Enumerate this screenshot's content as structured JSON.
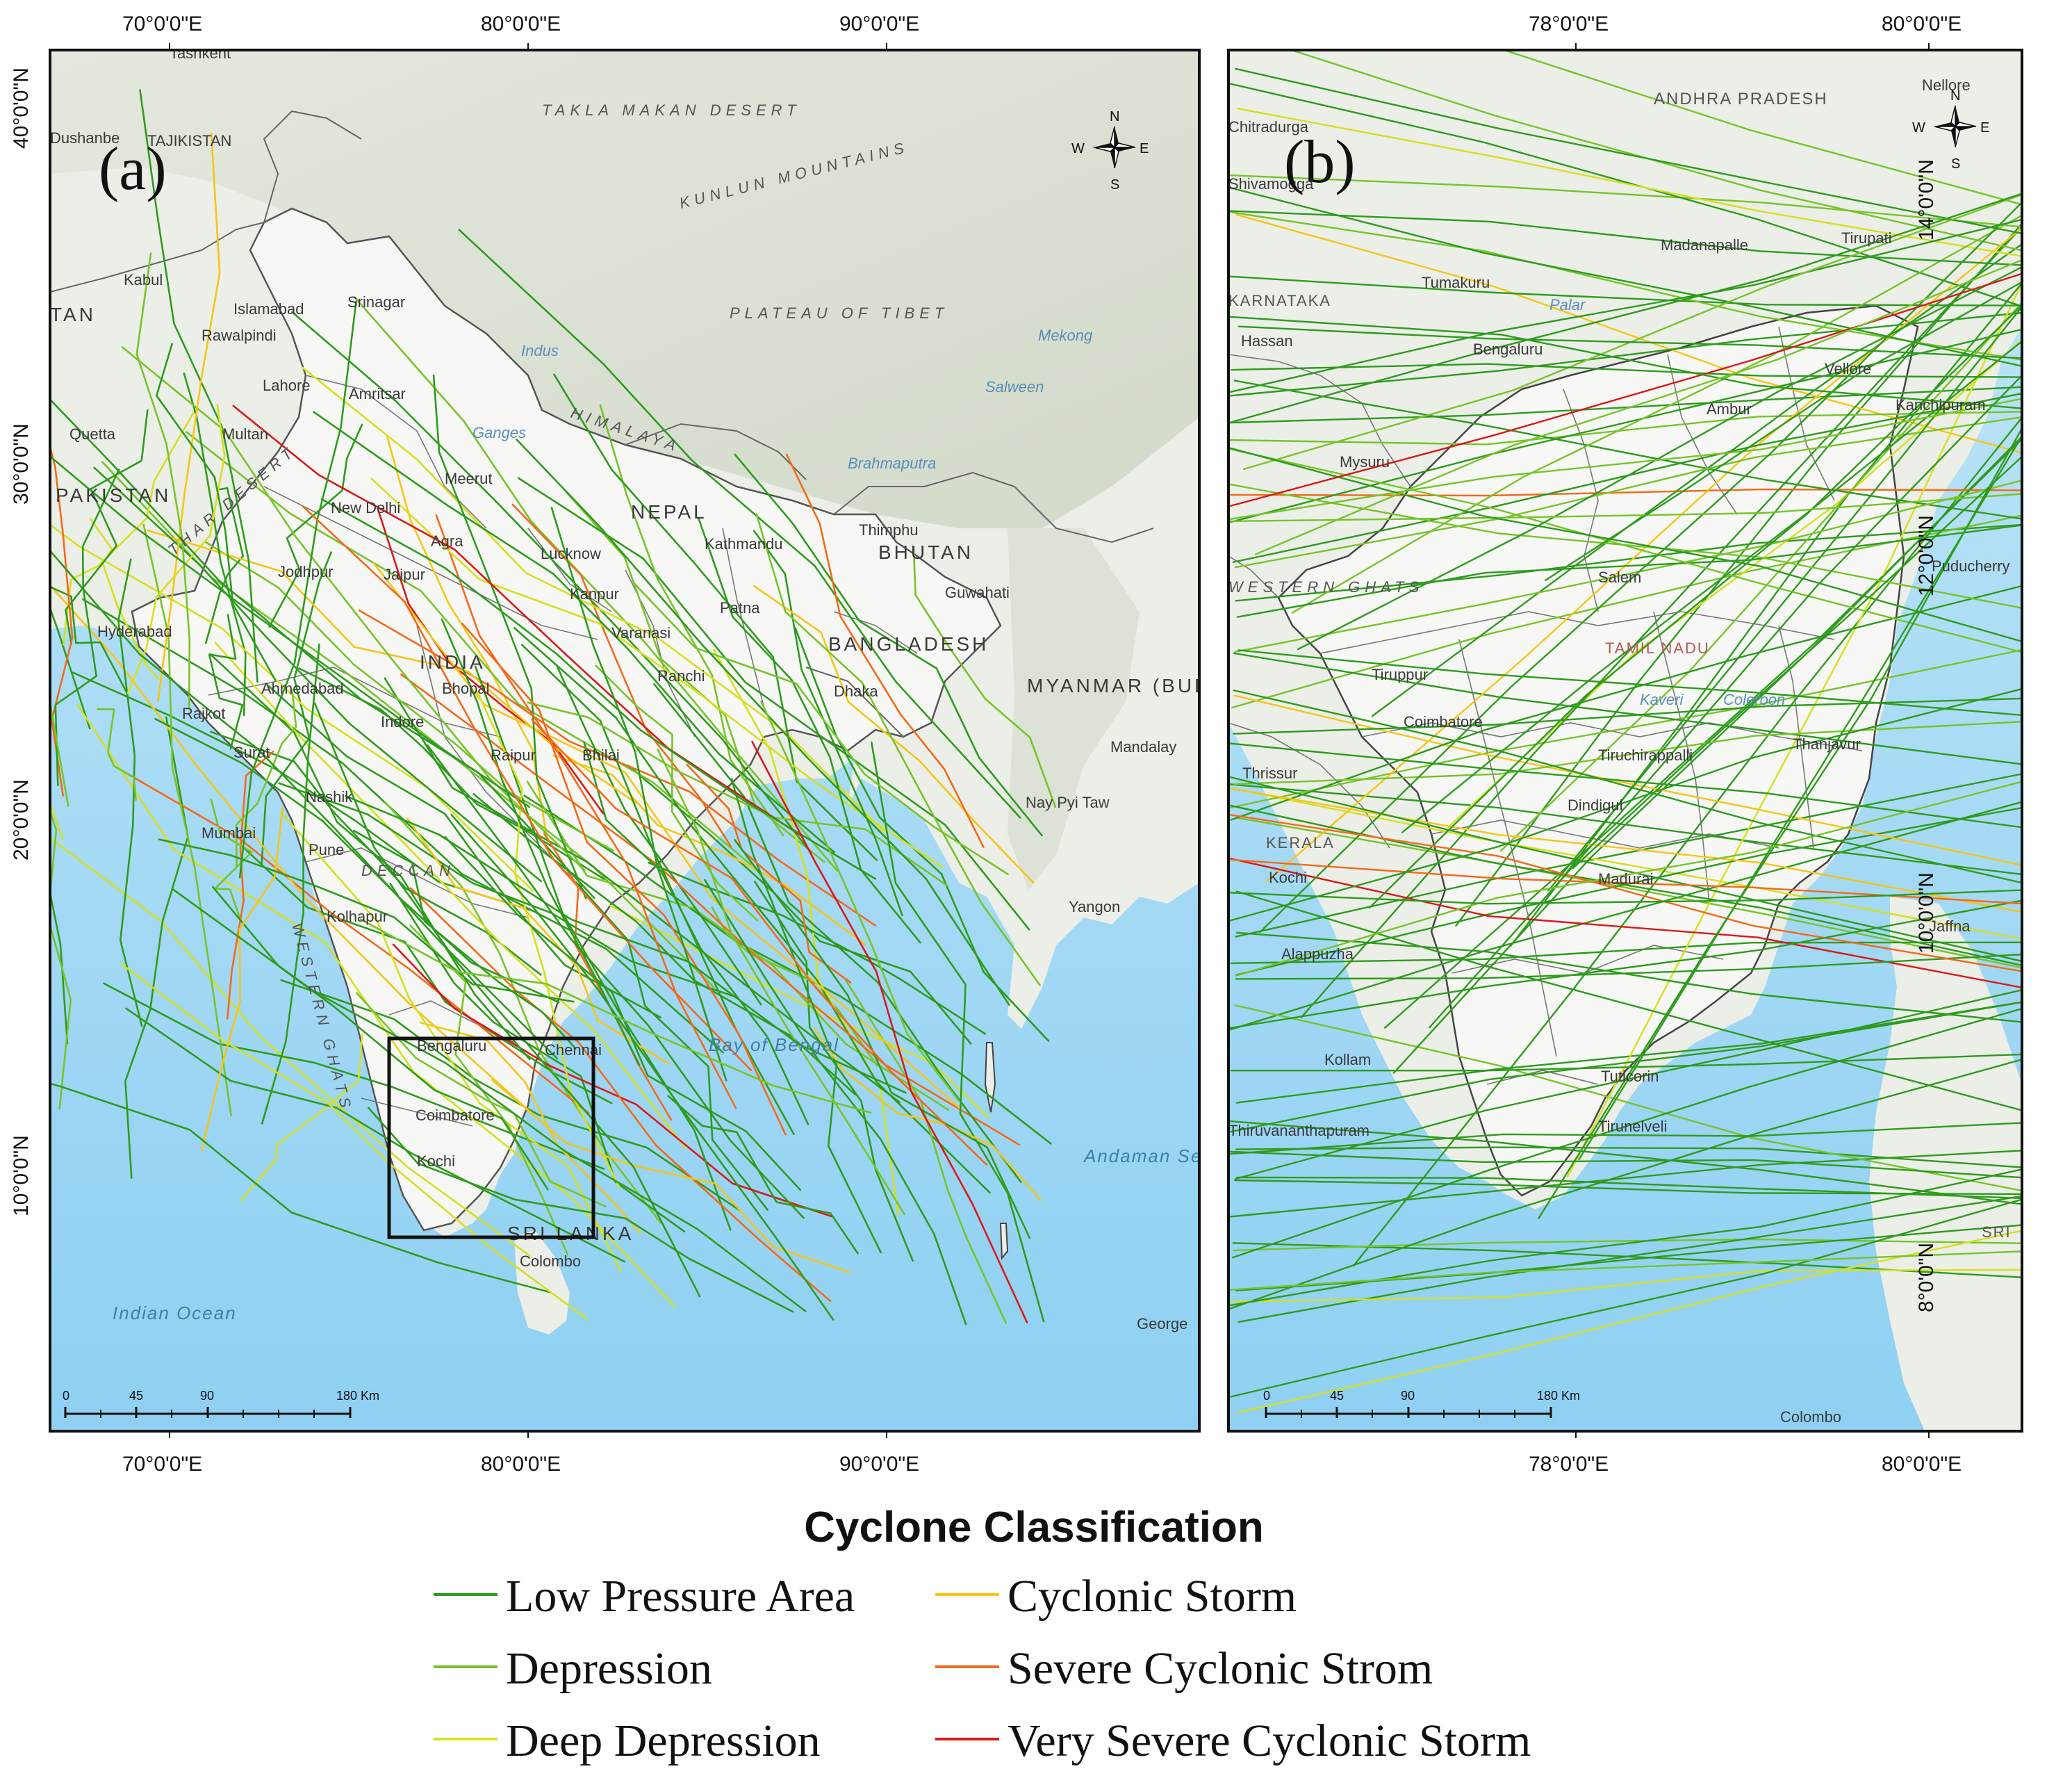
{
  "panels": {
    "a": {
      "letter": "(a)",
      "lon_labels": [
        "70°0'0\"E",
        "80°0'0\"E",
        "90°0'0\"E"
      ],
      "lat_labels": [
        "40°0'0\"N",
        "30°0'0\"N",
        "20°0'0\"N",
        "10°0'0\"N"
      ],
      "places": [
        "Tashkent",
        "Dushanbe",
        "TAJIKISTAN",
        "Kabul",
        "Islamabad",
        "Rawalpindi",
        "Srinagar",
        "Lahore",
        "Amritsar",
        "Quetta",
        "Multan",
        "New Delhi",
        "Meerut",
        "Agra",
        "Jaipur",
        "Jodhpur",
        "Lucknow",
        "Kanpur",
        "Varanasi",
        "Patna",
        "Kathmandu",
        "Thimphu",
        "Guwahati",
        "Hyderabad",
        "Ahmedabad",
        "Rajkot",
        "Surat",
        "Bhopal",
        "Indore",
        "Nashik",
        "Mumbai",
        "Pune",
        "Kolhapur",
        "Ranchi",
        "Bhilai",
        "Raipur",
        "Dhaka",
        "Mandalay",
        "Nay Pyi Taw",
        "Yangon",
        "Bengaluru",
        "Chennai",
        "Coimbatore",
        "Kochi",
        "Colombo",
        "George"
      ],
      "regions": [
        "TAKLA MAKAN DESERT",
        "KUNLUN MOUNTAINS",
        "PLATEAU OF TIBET",
        "HIMALAYA",
        "DECCAN",
        "WESTERN GHATS",
        "THAR DESERT"
      ],
      "countries": [
        "PAKISTAN",
        "INDIA",
        "NEPAL",
        "BHUTAN",
        "BANGLADESH",
        "MYANMAR (BURMA)",
        "SRI LANKA",
        "TAN"
      ],
      "seas": [
        "Indian Ocean",
        "Bay of Bengal",
        "Andaman Sea"
      ],
      "rivers": [
        "Indus",
        "Mekong",
        "Salween",
        "Brahmaputra",
        "Ganges"
      ],
      "scale": [
        "0",
        "45",
        "90",
        "180 Km"
      ]
    },
    "b": {
      "letter": "(b)",
      "lon_labels": [
        "78°0'0\"E",
        "80°0'0\"E"
      ],
      "lat_labels": [
        "14°0'0\"N",
        "12°0'0\"N",
        "10°0'0\"N",
        "8°0'0\"N"
      ],
      "places": [
        "Chitradurga",
        "Shivamogga",
        "Tumakuru",
        "Madanapalle",
        "Tirupati",
        "Nellore",
        "Hassan",
        "Bengaluru",
        "Vellore",
        "Ambur",
        "Kanchipuram",
        "Mysuru",
        "Salem",
        "Puducherry",
        "Tiruppur",
        "Coimbatore",
        "Thrissur",
        "Tiruchirappalli",
        "Thanjavur",
        "Dindigul",
        "Kochi",
        "Madurai",
        "Alappuzha",
        "Jaffna",
        "Kollam",
        "Tuticorin",
        "Thiruvananthapuram",
        "Tirunelveli",
        "Colombo"
      ],
      "regions": [
        "ANDHRA PRADESH",
        "KARNATAKA",
        "WESTERN GHATS",
        "KERALA",
        "TAMIL NADU",
        "SRI"
      ],
      "rivers": [
        "Palar",
        "Kaveri",
        "Coleroon"
      ],
      "scale": [
        "0",
        "45",
        "90",
        "180 Km"
      ]
    }
  },
  "compass": {
    "n": "N",
    "s": "S",
    "e": "E",
    "w": "W"
  },
  "legend": {
    "title": "Cyclone Classification",
    "items": [
      {
        "label": "Low Pressure Area",
        "color": "#2e9b1e"
      },
      {
        "label": "Depression",
        "color": "#76c42a"
      },
      {
        "label": "Deep Depression",
        "color": "#d6e01e"
      },
      {
        "label": "Cyclonic Storm",
        "color": "#f5c518"
      },
      {
        "label": "Severe Cyclonic Strom",
        "color": "#f26a1b"
      },
      {
        "label": "Very Severe Cyclonic Storm",
        "color": "#d81a1a"
      }
    ]
  },
  "colors": {
    "land": "#f1f1ee",
    "sea": "#a9d9f3",
    "relief": "#d9dfd2",
    "border": "#6a6a6a",
    "frame": "#111111"
  }
}
